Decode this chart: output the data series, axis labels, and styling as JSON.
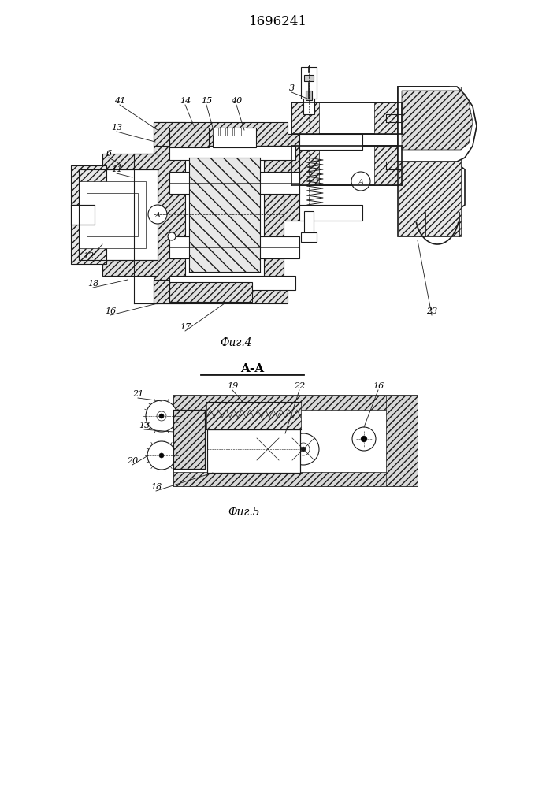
{
  "title": "1696241",
  "bg_color": "#ffffff",
  "line_color": "#1a1a1a",
  "fig4_caption": "Фиг.4",
  "fig5_caption": "Фиг.5",
  "section_label": "A-A"
}
